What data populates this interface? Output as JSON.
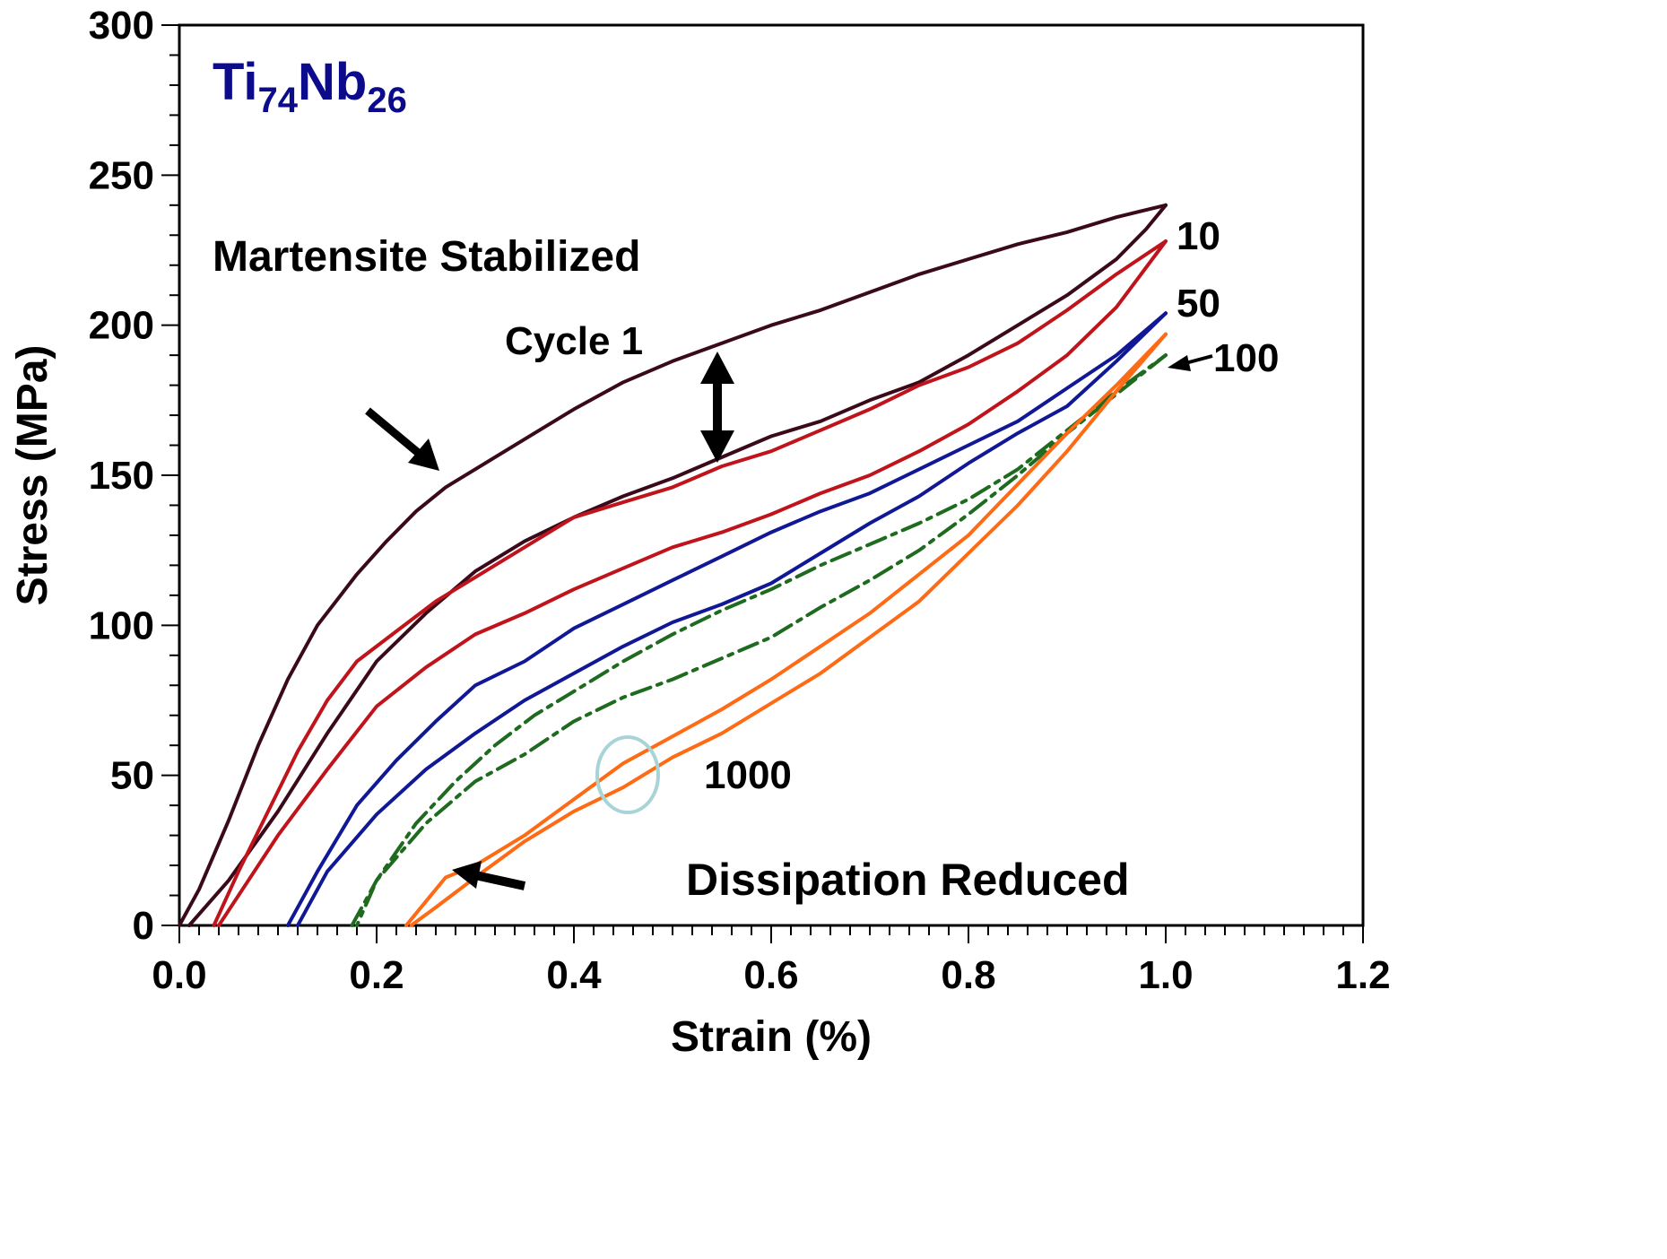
{
  "chart_data": {
    "type": "line",
    "xlabel": "Strain (%)",
    "ylabel": "Stress (MPa)",
    "xlim": [
      0,
      1.2
    ],
    "ylim": [
      0,
      300
    ],
    "x_ticks": [
      "0.0",
      "0.2",
      "0.4",
      "0.6",
      "0.8",
      "1.0",
      "1.2"
    ],
    "y_ticks": [
      "0",
      "50",
      "100",
      "150",
      "200",
      "250",
      "300"
    ],
    "alloy_label": {
      "base": "Ti",
      "sub1": "74",
      "mid": "Nb",
      "sub2": "26"
    },
    "annotations": {
      "top_text": "Martensite Stabilized",
      "cycle1": "Cycle 1",
      "bottom_text": "Dissipation Reduced",
      "label_10": "10",
      "label_50": "50",
      "label_100": "100",
      "label_1000": "1000"
    },
    "series": [
      {
        "color": "#3a0a1a",
        "style": "solid",
        "loading": [
          [
            0.0,
            0
          ],
          [
            0.02,
            12
          ],
          [
            0.05,
            35
          ],
          [
            0.08,
            60
          ],
          [
            0.11,
            82
          ],
          [
            0.14,
            100
          ],
          [
            0.18,
            117
          ],
          [
            0.21,
            128
          ],
          [
            0.24,
            138
          ],
          [
            0.27,
            146
          ],
          [
            0.3,
            152
          ],
          [
            0.35,
            162
          ],
          [
            0.4,
            172
          ],
          [
            0.45,
            181
          ],
          [
            0.5,
            188
          ],
          [
            0.55,
            194
          ],
          [
            0.6,
            200
          ],
          [
            0.65,
            205
          ],
          [
            0.7,
            211
          ],
          [
            0.75,
            217
          ],
          [
            0.8,
            222
          ],
          [
            0.85,
            227
          ],
          [
            0.9,
            231
          ],
          [
            0.95,
            236
          ],
          [
            1.0,
            240
          ]
        ],
        "unloading": [
          [
            1.0,
            240
          ],
          [
            0.98,
            232
          ],
          [
            0.95,
            222
          ],
          [
            0.9,
            210
          ],
          [
            0.85,
            200
          ],
          [
            0.8,
            190
          ],
          [
            0.75,
            181
          ],
          [
            0.7,
            175
          ],
          [
            0.65,
            168
          ],
          [
            0.6,
            163
          ],
          [
            0.55,
            156
          ],
          [
            0.5,
            149
          ],
          [
            0.45,
            143
          ],
          [
            0.4,
            136
          ],
          [
            0.35,
            128
          ],
          [
            0.3,
            118
          ],
          [
            0.25,
            104
          ],
          [
            0.2,
            88
          ],
          [
            0.15,
            64
          ],
          [
            0.1,
            38
          ],
          [
            0.05,
            15
          ],
          [
            0.01,
            0
          ]
        ]
      },
      {
        "color": "#c0141c",
        "style": "solid",
        "loading": [
          [
            0.035,
            0
          ],
          [
            0.06,
            18
          ],
          [
            0.09,
            38
          ],
          [
            0.12,
            58
          ],
          [
            0.15,
            75
          ],
          [
            0.18,
            88
          ],
          [
            0.22,
            98
          ],
          [
            0.26,
            108
          ],
          [
            0.3,
            116
          ],
          [
            0.35,
            126
          ],
          [
            0.4,
            136
          ],
          [
            0.45,
            141
          ],
          [
            0.5,
            146
          ],
          [
            0.55,
            153
          ],
          [
            0.6,
            158
          ],
          [
            0.65,
            165
          ],
          [
            0.7,
            172
          ],
          [
            0.75,
            180
          ],
          [
            0.8,
            186
          ],
          [
            0.85,
            194
          ],
          [
            0.9,
            205
          ],
          [
            0.95,
            217
          ],
          [
            1.0,
            228
          ]
        ],
        "unloading": [
          [
            1.0,
            228
          ],
          [
            0.95,
            206
          ],
          [
            0.9,
            190
          ],
          [
            0.85,
            178
          ],
          [
            0.8,
            167
          ],
          [
            0.75,
            158
          ],
          [
            0.7,
            150
          ],
          [
            0.65,
            144
          ],
          [
            0.6,
            137
          ],
          [
            0.55,
            131
          ],
          [
            0.5,
            126
          ],
          [
            0.45,
            119
          ],
          [
            0.4,
            112
          ],
          [
            0.35,
            104
          ],
          [
            0.3,
            97
          ],
          [
            0.25,
            86
          ],
          [
            0.2,
            73
          ],
          [
            0.15,
            52
          ],
          [
            0.1,
            30
          ],
          [
            0.07,
            15
          ],
          [
            0.04,
            0
          ]
        ]
      },
      {
        "color": "#101896",
        "style": "solid",
        "loading": [
          [
            0.11,
            0
          ],
          [
            0.14,
            18
          ],
          [
            0.18,
            40
          ],
          [
            0.22,
            55
          ],
          [
            0.26,
            68
          ],
          [
            0.3,
            80
          ],
          [
            0.35,
            88
          ],
          [
            0.4,
            99
          ],
          [
            0.45,
            107
          ],
          [
            0.5,
            115
          ],
          [
            0.55,
            123
          ],
          [
            0.6,
            131
          ],
          [
            0.65,
            138
          ],
          [
            0.7,
            144
          ],
          [
            0.75,
            152
          ],
          [
            0.8,
            160
          ],
          [
            0.85,
            168
          ],
          [
            0.9,
            179
          ],
          [
            0.95,
            190
          ],
          [
            1.0,
            204
          ]
        ],
        "unloading": [
          [
            1.0,
            204
          ],
          [
            0.95,
            188
          ],
          [
            0.9,
            173
          ],
          [
            0.85,
            164
          ],
          [
            0.8,
            154
          ],
          [
            0.75,
            143
          ],
          [
            0.7,
            134
          ],
          [
            0.65,
            124
          ],
          [
            0.6,
            114
          ],
          [
            0.55,
            107
          ],
          [
            0.5,
            101
          ],
          [
            0.45,
            93
          ],
          [
            0.4,
            84
          ],
          [
            0.35,
            75
          ],
          [
            0.3,
            64
          ],
          [
            0.25,
            52
          ],
          [
            0.2,
            37
          ],
          [
            0.15,
            18
          ],
          [
            0.12,
            0
          ]
        ]
      },
      {
        "color": "#1e6a1e",
        "style": "dashdot",
        "loading": [
          [
            0.175,
            0
          ],
          [
            0.2,
            15
          ],
          [
            0.24,
            34
          ],
          [
            0.28,
            48
          ],
          [
            0.32,
            60
          ],
          [
            0.36,
            70
          ],
          [
            0.4,
            78
          ],
          [
            0.45,
            88
          ],
          [
            0.5,
            97
          ],
          [
            0.55,
            105
          ],
          [
            0.6,
            112
          ],
          [
            0.65,
            120
          ],
          [
            0.7,
            127
          ],
          [
            0.75,
            134
          ],
          [
            0.8,
            142
          ],
          [
            0.85,
            152
          ],
          [
            0.9,
            165
          ],
          [
            0.95,
            178
          ],
          [
            1.0,
            190
          ]
        ],
        "unloading": [
          [
            1.0,
            190
          ],
          [
            0.95,
            177
          ],
          [
            0.9,
            164
          ],
          [
            0.85,
            150
          ],
          [
            0.8,
            137
          ],
          [
            0.75,
            125
          ],
          [
            0.7,
            115
          ],
          [
            0.65,
            106
          ],
          [
            0.6,
            96
          ],
          [
            0.55,
            89
          ],
          [
            0.5,
            82
          ],
          [
            0.45,
            76
          ],
          [
            0.4,
            68
          ],
          [
            0.35,
            57
          ],
          [
            0.3,
            48
          ],
          [
            0.25,
            34
          ],
          [
            0.2,
            15
          ],
          [
            0.18,
            0
          ]
        ]
      },
      {
        "color": "#ff6a14",
        "style": "solid",
        "loading": [
          [
            0.23,
            0
          ],
          [
            0.25,
            8
          ],
          [
            0.27,
            16
          ],
          [
            0.3,
            20
          ],
          [
            0.35,
            30
          ],
          [
            0.4,
            42
          ],
          [
            0.45,
            54
          ],
          [
            0.5,
            63
          ],
          [
            0.55,
            72
          ],
          [
            0.6,
            82
          ],
          [
            0.65,
            93
          ],
          [
            0.7,
            104
          ],
          [
            0.75,
            117
          ],
          [
            0.8,
            130
          ],
          [
            0.85,
            147
          ],
          [
            0.9,
            164
          ],
          [
            0.95,
            180
          ],
          [
            1.0,
            197
          ]
        ],
        "unloading": [
          [
            1.0,
            197
          ],
          [
            0.95,
            178
          ],
          [
            0.9,
            158
          ],
          [
            0.85,
            140
          ],
          [
            0.8,
            124
          ],
          [
            0.75,
            108
          ],
          [
            0.7,
            96
          ],
          [
            0.65,
            84
          ],
          [
            0.6,
            74
          ],
          [
            0.55,
            64
          ],
          [
            0.5,
            56
          ],
          [
            0.45,
            46
          ],
          [
            0.4,
            38
          ],
          [
            0.35,
            28
          ],
          [
            0.3,
            16
          ],
          [
            0.26,
            6
          ],
          [
            0.235,
            0
          ]
        ]
      }
    ]
  }
}
